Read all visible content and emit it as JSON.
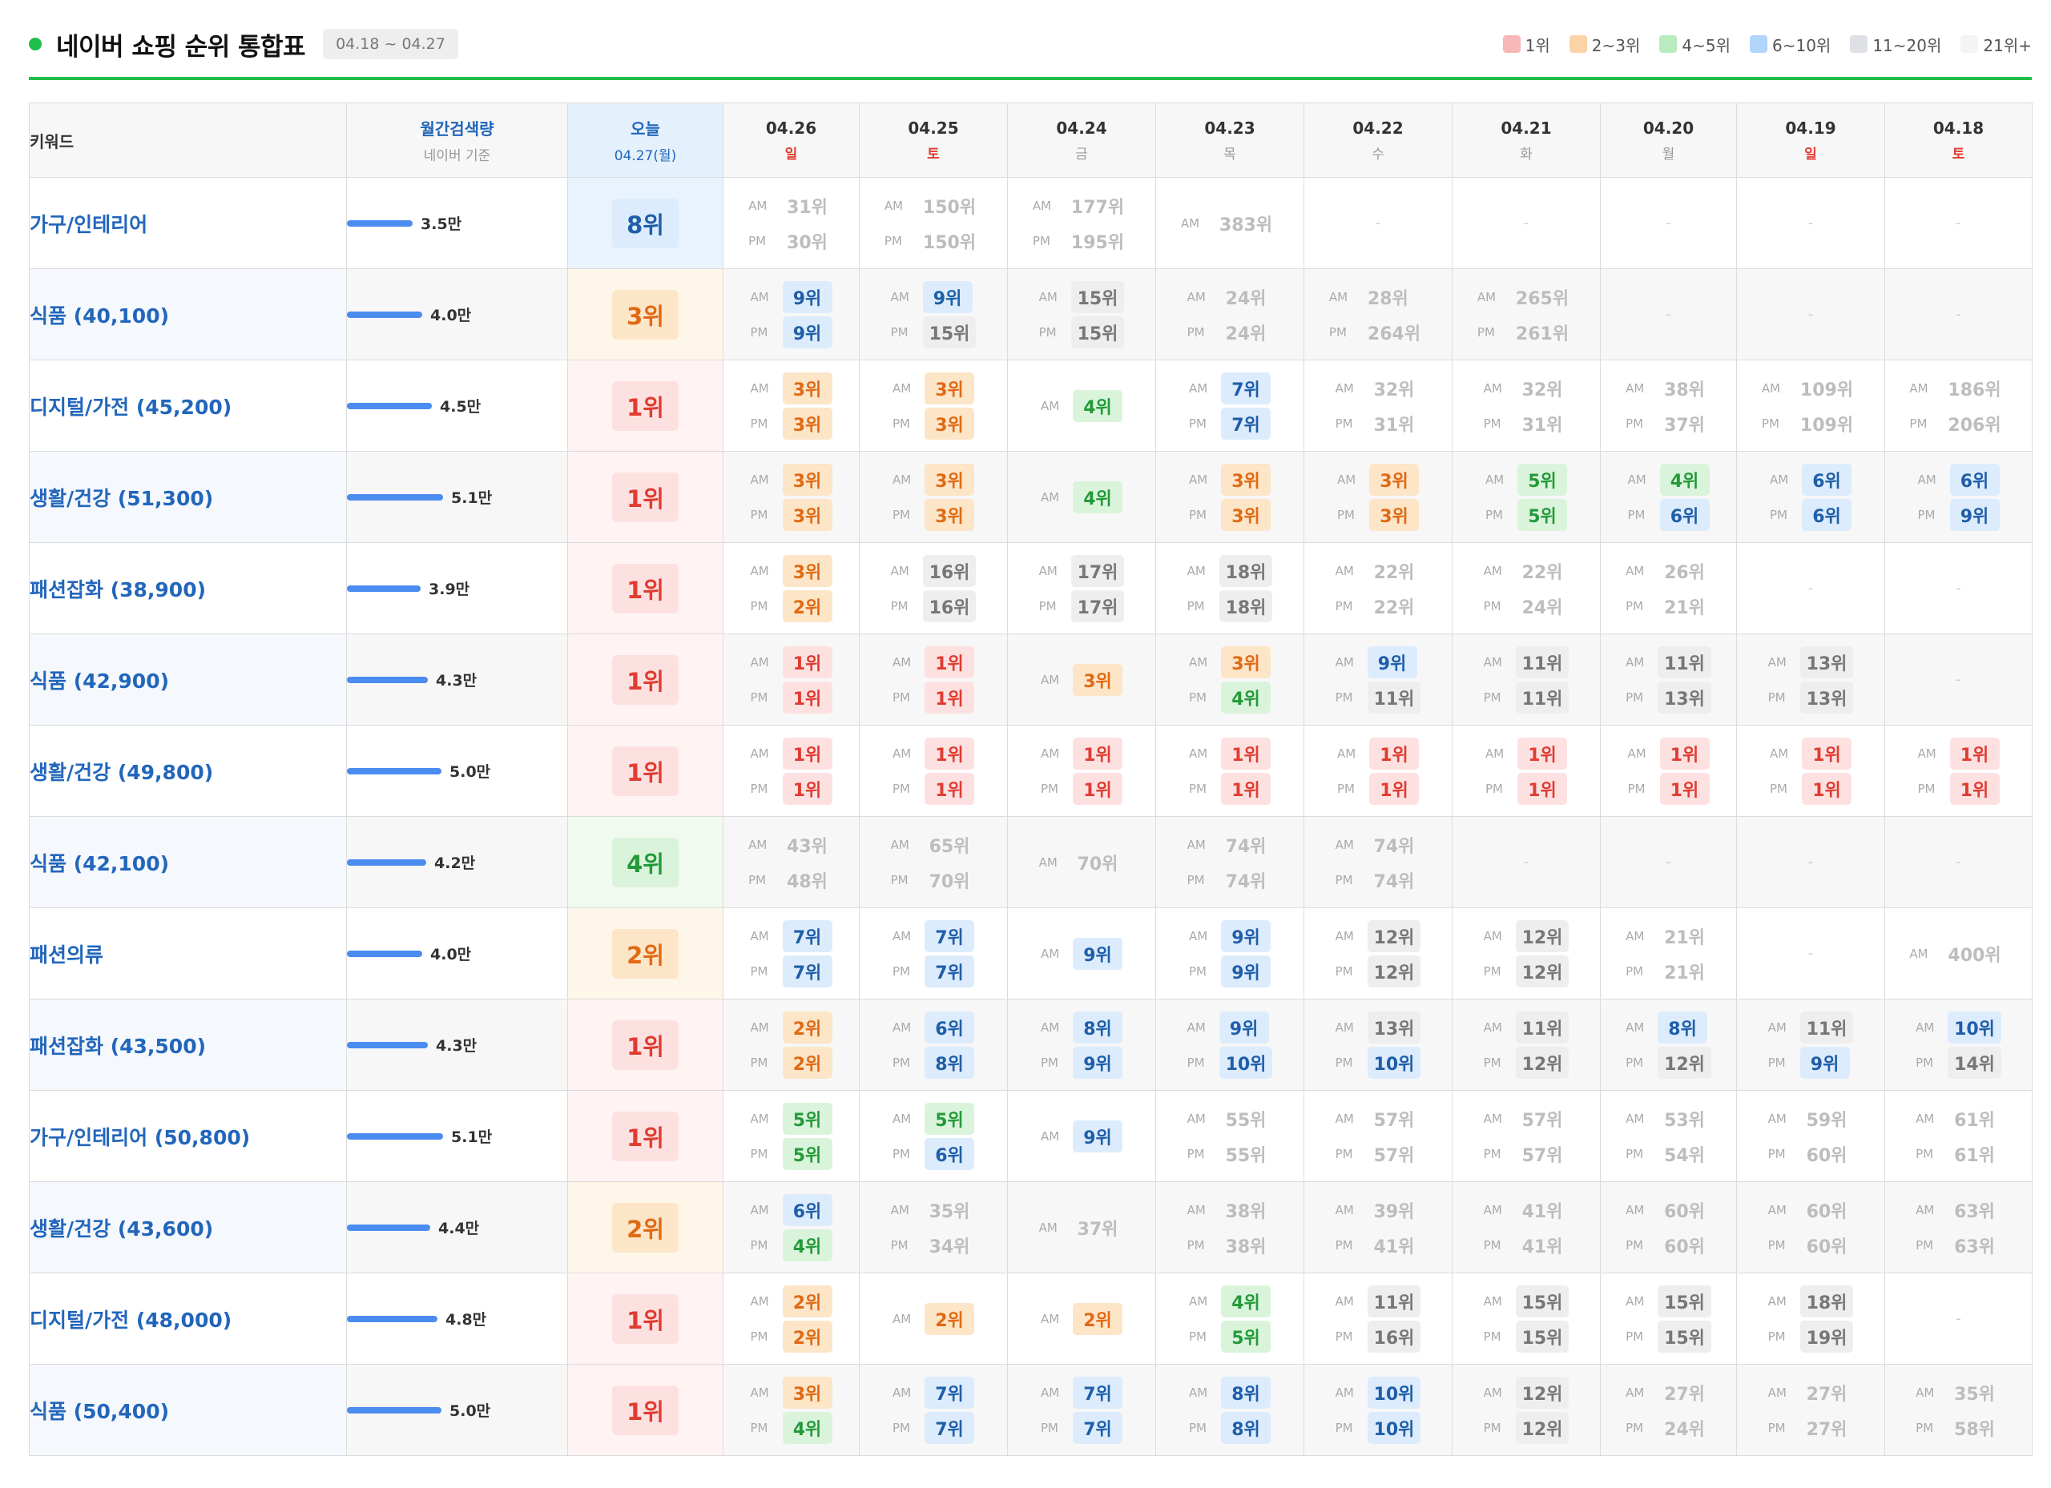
{
  "header": {
    "title": "네이버 쇼핑 순위 통합표",
    "date_range": "04.18 ~ 04.27"
  },
  "legend": [
    {
      "label": "1위",
      "color": "#f7b8b8"
    },
    {
      "label": "2~3위",
      "color": "#fbd3a6"
    },
    {
      "label": "4~5위",
      "color": "#b9ebbf"
    },
    {
      "label": "6~10위",
      "color": "#b2d5fb"
    },
    {
      "label": "11~20위",
      "color": "#dde1e6"
    },
    {
      "label": "21위+",
      "color": "#f4f4f4"
    }
  ],
  "columns": {
    "keyword": "키워드",
    "volume": {
      "main": "월간검색량",
      "sub": "네이버 기준"
    },
    "today": {
      "main": "오늘",
      "sub": "04.27(월)"
    },
    "dates": [
      {
        "date": "04.26",
        "weekday": "일",
        "weekend": true
      },
      {
        "date": "04.25",
        "weekday": "토",
        "weekend": true
      },
      {
        "date": "04.24",
        "weekday": "금",
        "weekend": false
      },
      {
        "date": "04.23",
        "weekday": "목",
        "weekend": false
      },
      {
        "date": "04.22",
        "weekday": "수",
        "weekend": false
      },
      {
        "date": "04.21",
        "weekday": "화",
        "weekend": false
      },
      {
        "date": "04.20",
        "weekday": "월",
        "weekend": false
      },
      {
        "date": "04.19",
        "weekday": "일",
        "weekend": true
      },
      {
        "date": "04.18",
        "weekday": "토",
        "weekend": true
      }
    ]
  },
  "labels": {
    "am": "AM",
    "pm": "PM",
    "empty": "-",
    "rank_suffix": "위"
  },
  "rows": [
    {
      "keyword": "가구/인테리어",
      "volume": 3.5,
      "volume_label": "3.5만",
      "today": 8,
      "days": [
        [
          31,
          30
        ],
        [
          150,
          150
        ],
        [
          177,
          195
        ],
        [
          383
        ],
        [],
        [],
        [],
        [],
        []
      ]
    },
    {
      "keyword": "식품 (40,100)",
      "volume": 4.0,
      "volume_label": "4.0만",
      "today": 3,
      "days": [
        [
          9,
          9
        ],
        [
          9,
          15
        ],
        [
          15,
          15
        ],
        [
          24,
          24
        ],
        [
          28,
          264
        ],
        [
          265,
          261
        ],
        [],
        [],
        []
      ]
    },
    {
      "keyword": "디지털/가전 (45,200)",
      "volume": 4.5,
      "volume_label": "4.5만",
      "today": 1,
      "days": [
        [
          3,
          3
        ],
        [
          3,
          3
        ],
        [
          4
        ],
        [
          7,
          7
        ],
        [
          32,
          31
        ],
        [
          32,
          31
        ],
        [
          38,
          37
        ],
        [
          109,
          109
        ],
        [
          186,
          206
        ]
      ]
    },
    {
      "keyword": "생활/건강 (51,300)",
      "volume": 5.1,
      "volume_label": "5.1만",
      "today": 1,
      "days": [
        [
          3,
          3
        ],
        [
          3,
          3
        ],
        [
          4
        ],
        [
          3,
          3
        ],
        [
          3,
          3
        ],
        [
          5,
          5
        ],
        [
          4,
          6
        ],
        [
          6,
          6
        ],
        [
          6,
          9
        ]
      ]
    },
    {
      "keyword": "패션잡화 (38,900)",
      "volume": 3.9,
      "volume_label": "3.9만",
      "today": 1,
      "days": [
        [
          3,
          2
        ],
        [
          16,
          16
        ],
        [
          17,
          17
        ],
        [
          18,
          18
        ],
        [
          22,
          22
        ],
        [
          22,
          24
        ],
        [
          26,
          21
        ],
        [],
        []
      ]
    },
    {
      "keyword": "식품 (42,900)",
      "volume": 4.3,
      "volume_label": "4.3만",
      "today": 1,
      "days": [
        [
          1,
          1
        ],
        [
          1,
          1
        ],
        [
          3
        ],
        [
          3,
          4
        ],
        [
          9,
          11
        ],
        [
          11,
          11
        ],
        [
          11,
          13
        ],
        [
          13,
          13
        ],
        []
      ]
    },
    {
      "keyword": "생활/건강 (49,800)",
      "volume": 5.0,
      "volume_label": "5.0만",
      "today": 1,
      "days": [
        [
          1,
          1
        ],
        [
          1,
          1
        ],
        [
          1,
          1
        ],
        [
          1,
          1
        ],
        [
          1,
          1
        ],
        [
          1,
          1
        ],
        [
          1,
          1
        ],
        [
          1,
          1
        ],
        [
          1,
          1
        ]
      ]
    },
    {
      "keyword": "식품 (42,100)",
      "volume": 4.2,
      "volume_label": "4.2만",
      "today": 4,
      "days": [
        [
          43,
          48
        ],
        [
          65,
          70
        ],
        [
          70
        ],
        [
          74,
          74
        ],
        [
          74,
          74
        ],
        [],
        [],
        [],
        []
      ]
    },
    {
      "keyword": "패션의류",
      "volume": 4.0,
      "volume_label": "4.0만",
      "today": 2,
      "days": [
        [
          7,
          7
        ],
        [
          7,
          7
        ],
        [
          9
        ],
        [
          9,
          9
        ],
        [
          12,
          12
        ],
        [
          12,
          12
        ],
        [
          21,
          21
        ],
        [],
        [
          400
        ]
      ]
    },
    {
      "keyword": "패션잡화 (43,500)",
      "volume": 4.3,
      "volume_label": "4.3만",
      "today": 1,
      "days": [
        [
          2,
          2
        ],
        [
          6,
          8
        ],
        [
          8,
          9
        ],
        [
          9,
          10
        ],
        [
          13,
          10
        ],
        [
          11,
          12
        ],
        [
          8,
          12
        ],
        [
          11,
          9
        ],
        [
          10,
          14
        ]
      ]
    },
    {
      "keyword": "가구/인테리어 (50,800)",
      "volume": 5.1,
      "volume_label": "5.1만",
      "today": 1,
      "days": [
        [
          5,
          5
        ],
        [
          5,
          6
        ],
        [
          9
        ],
        [
          55,
          55
        ],
        [
          57,
          57
        ],
        [
          57,
          57
        ],
        [
          53,
          54
        ],
        [
          59,
          60
        ],
        [
          61,
          61
        ]
      ]
    },
    {
      "keyword": "생활/건강 (43,600)",
      "volume": 4.4,
      "volume_label": "4.4만",
      "today": 2,
      "days": [
        [
          6,
          4
        ],
        [
          35,
          34
        ],
        [
          37
        ],
        [
          38,
          38
        ],
        [
          39,
          41
        ],
        [
          41,
          41
        ],
        [
          60,
          60
        ],
        [
          60,
          60
        ],
        [
          63,
          63
        ]
      ]
    },
    {
      "keyword": "디지털/가전 (48,000)",
      "volume": 4.8,
      "volume_label": "4.8만",
      "today": 1,
      "days": [
        [
          2,
          2
        ],
        [
          2
        ],
        [
          2
        ],
        [
          4,
          5
        ],
        [
          11,
          16
        ],
        [
          15,
          15
        ],
        [
          15,
          15
        ],
        [
          18,
          19
        ],
        []
      ]
    },
    {
      "keyword": "식품 (50,400)",
      "volume": 5.0,
      "volume_label": "5.0만",
      "today": 1,
      "days": [
        [
          3,
          4
        ],
        [
          7,
          7
        ],
        [
          7,
          7
        ],
        [
          8,
          8
        ],
        [
          10,
          10
        ],
        [
          12,
          12
        ],
        [
          27,
          24
        ],
        [
          27,
          27
        ],
        [
          35,
          58
        ]
      ]
    }
  ]
}
